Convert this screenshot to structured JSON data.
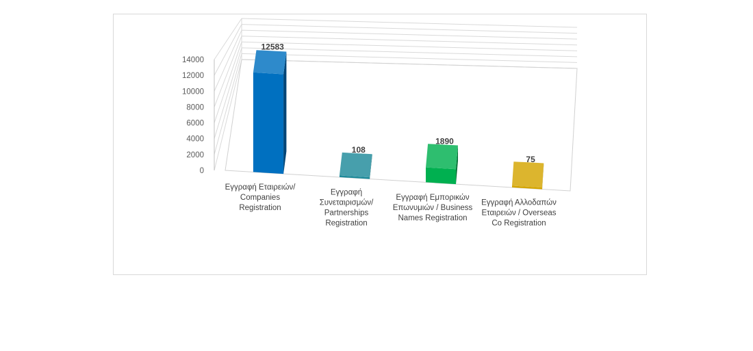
{
  "chart_data": {
    "type": "bar",
    "categories": [
      [
        "Εγγραφή Εταιρειών/",
        "Companies",
        "Registration"
      ],
      [
        "Εγγραφή",
        "Συνεταιρισμών/",
        "Partnerships",
        "Registration"
      ],
      [
        "Εγγραφή Εμπορικών",
        "Επωνυμιών / Business",
        "Names Registration"
      ],
      [
        "Εγγραφή Αλλοδαπών",
        "Εταιρειών / Overseas",
        "Co Registration"
      ]
    ],
    "values": [
      12583,
      108,
      1890,
      75
    ],
    "data_labels": [
      "12583",
      "108",
      "1890",
      "75"
    ],
    "colors": [
      "#0070c0",
      "#1f8a9a",
      "#00b050",
      "#d4a500"
    ],
    "ylim": [
      0,
      14000
    ],
    "yticks": [
      "0",
      "2000",
      "4000",
      "6000",
      "8000",
      "10000",
      "12000",
      "14000"
    ],
    "grid": true,
    "style": "3d-column",
    "title": "",
    "xlabel": "",
    "ylabel": ""
  }
}
